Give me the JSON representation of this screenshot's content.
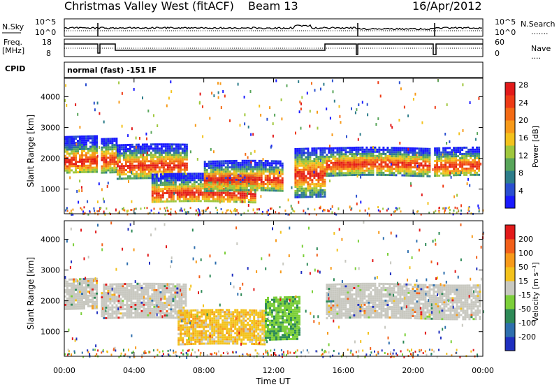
{
  "header": {
    "title": "Christmas Valley West (fitACF)",
    "beam": "Beam 13",
    "date": "16/Apr/2012"
  },
  "nsky_panel": {
    "left_label": "N.Sky",
    "left_ticks": [
      "10^5",
      "10^0"
    ],
    "right_ticks": [
      "10^5",
      "10^0"
    ],
    "right_label": "N.Search",
    "right_legend_dots": "......."
  },
  "freq_panel": {
    "left_label_1": "Freq.",
    "left_label_2": "[MHz]",
    "left_ticks": [
      "18",
      "8"
    ],
    "right_ticks": [
      "60",
      "0"
    ],
    "right_label": "Nave",
    "right_legend_dots": "...."
  },
  "cpid_panel": {
    "label": "CPID",
    "value": "normal (fast) -151 IF"
  },
  "chart_data": [
    {
      "type": "heatmap",
      "name": "power",
      "ylabel": "Slant Range [km]",
      "ylim": [
        200,
        4600
      ],
      "yticks": [
        1000,
        2000,
        3000,
        4000
      ],
      "xlim_hours": [
        0,
        24
      ],
      "colorbar": {
        "label": "Power [dB]",
        "ticks": [
          "4",
          "8",
          "12",
          "16",
          "20",
          "24",
          "28"
        ],
        "colors": [
          "#1a1aff",
          "#2a4fd0",
          "#2d7d8a",
          "#58a55a",
          "#9fc73d",
          "#f3c21c",
          "#f79a1a",
          "#f36b15",
          "#ee3b16",
          "#e21a1a"
        ]
      },
      "bands": [
        {
          "t0": 0.0,
          "t1": 1.9,
          "r0": 1500,
          "r1": 2700,
          "peak": 1850
        },
        {
          "t0": 2.1,
          "t1": 3.0,
          "r0": 1500,
          "r1": 2600,
          "peak": 1900
        },
        {
          "t0": 3.0,
          "t1": 7.0,
          "r0": 1300,
          "r1": 2400,
          "peak": 1700
        },
        {
          "t0": 5.0,
          "t1": 11.0,
          "r0": 550,
          "r1": 1500,
          "peak": 800
        },
        {
          "t0": 8.0,
          "t1": 12.5,
          "r0": 900,
          "r1": 1900,
          "peak": 1250
        },
        {
          "t0": 13.2,
          "t1": 14.9,
          "r0": 700,
          "r1": 2300,
          "peak": 1400
        },
        {
          "t0": 15.0,
          "t1": 21.0,
          "r0": 1400,
          "r1": 2300,
          "peak": 1750
        },
        {
          "t0": 21.2,
          "t1": 23.8,
          "r0": 1400,
          "r1": 2300,
          "peak": 1700
        }
      ]
    },
    {
      "type": "heatmap",
      "name": "velocity",
      "ylabel": "Slant Range [km]",
      "ylim": [
        200,
        4600
      ],
      "yticks": [
        1000,
        2000,
        3000,
        4000
      ],
      "xlabel": "Time UT",
      "xticks": [
        "00:00",
        "04:00",
        "08:00",
        "12:00",
        "16:00",
        "20:00",
        "00:00"
      ],
      "colorbar": {
        "label": "Velocity [m s⁻¹]",
        "ticks": [
          "200",
          "100",
          "50",
          "15",
          "-15",
          "-50",
          "-100",
          "-200"
        ],
        "colors": [
          "#1f2fbf",
          "#2e6fae",
          "#2e8a57",
          "#7ccf3a",
          "#c8c8c0",
          "#f3c21c",
          "#f79a1a",
          "#f2601a",
          "#e21a1a"
        ]
      },
      "bands": [
        {
          "t0": 0.0,
          "t1": 1.9,
          "r0": 1700,
          "r1": 2700,
          "kind": "ground"
        },
        {
          "t0": 2.1,
          "t1": 7.0,
          "r0": 1400,
          "r1": 2500,
          "kind": "ground"
        },
        {
          "t0": 15.0,
          "t1": 23.8,
          "r0": 1400,
          "r1": 2500,
          "kind": "ground"
        },
        {
          "t0": 6.5,
          "t1": 11.5,
          "r0": 550,
          "r1": 1700,
          "kind": "negative"
        },
        {
          "t0": 11.5,
          "t1": 13.5,
          "r0": 700,
          "r1": 2100,
          "kind": "positive"
        }
      ]
    }
  ]
}
